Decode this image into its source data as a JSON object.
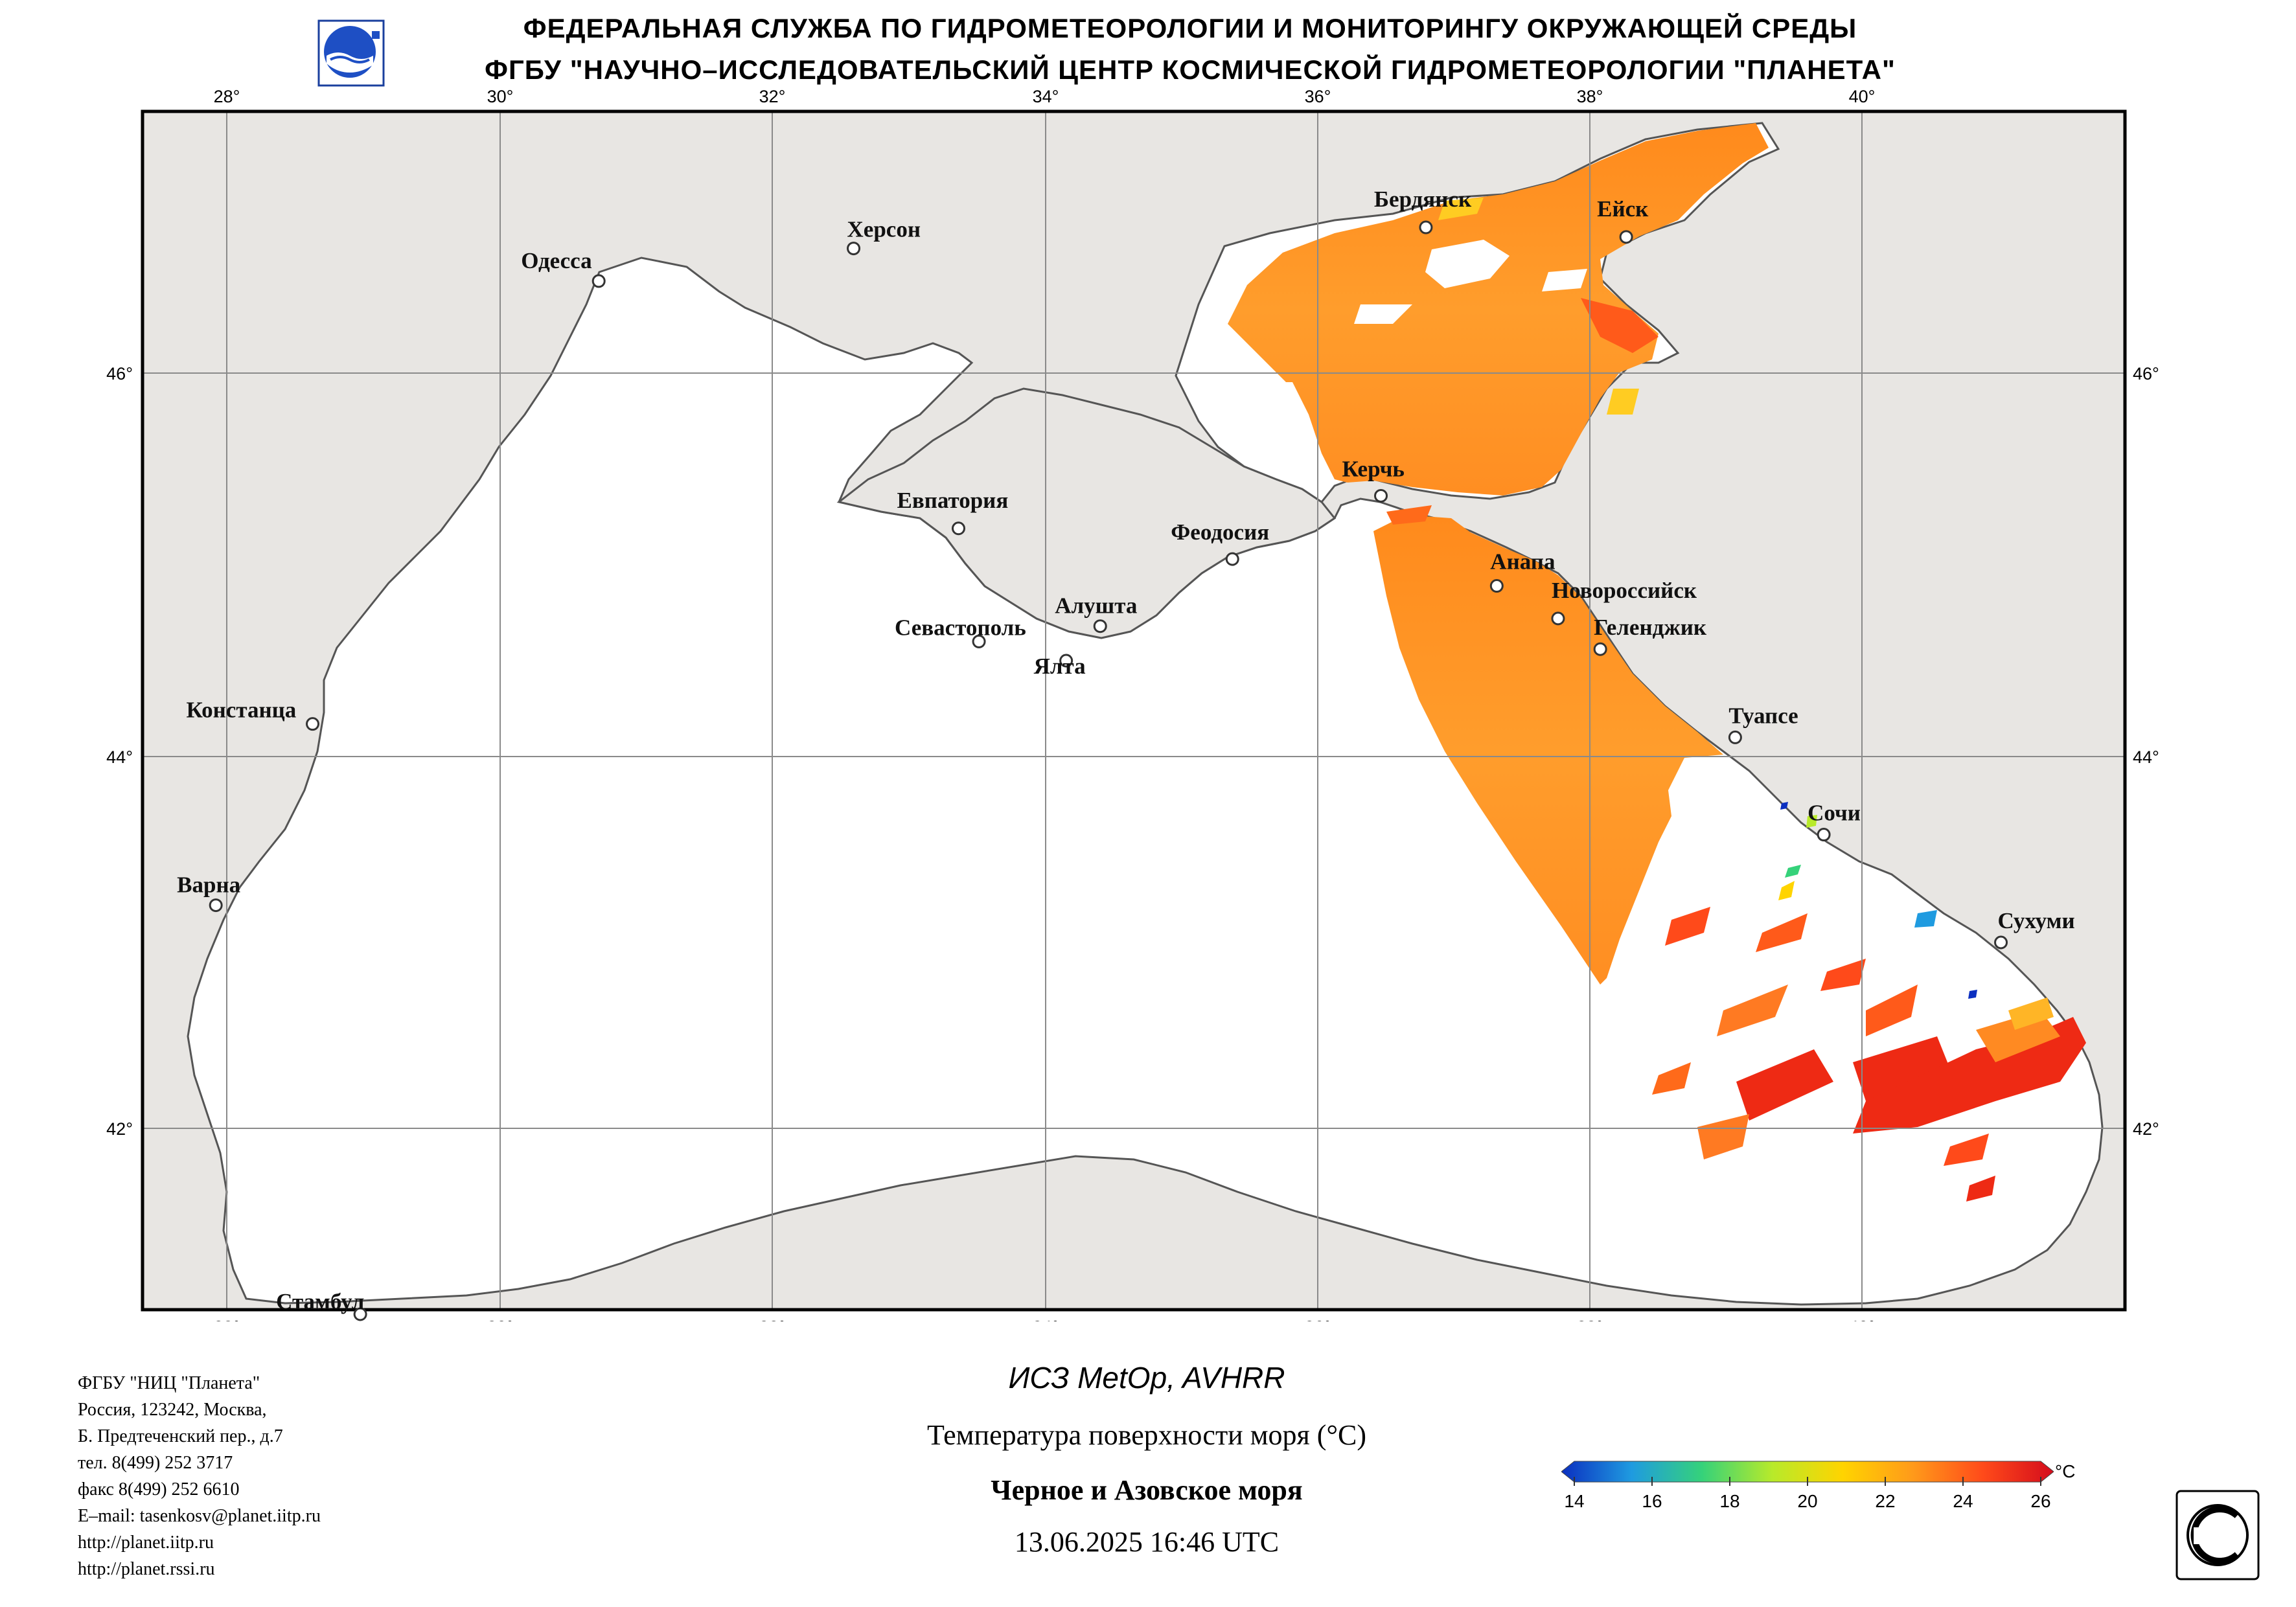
{
  "header": {
    "line1": "ФЕДЕРАЛЬНАЯ СЛУЖБА ПО ГИДРОМЕТЕОРОЛОГИИ И МОНИТОРИНГУ ОКРУЖАЮЩЕЙ СРЕДЫ",
    "line2": "ФГБУ \"НАУЧНО–ИССЛЕДОВАТЕЛЬСКИЙ ЦЕНТР КОСМИЧЕСКОЙ ГИДРОМЕТЕОРОЛОГИИ \"ПЛАНЕТА\""
  },
  "map": {
    "lon_ticks": [
      "28°",
      "30°",
      "32°",
      "34°",
      "36°",
      "38°",
      "40°"
    ],
    "lat_ticks": [
      "46°",
      "44°",
      "42°"
    ],
    "lon_range": [
      27.4,
      41.9
    ],
    "lat_range": [
      41.0,
      47.35
    ],
    "cities": [
      {
        "name": "Одесса",
        "lon": 30.73,
        "lat": 46.48
      },
      {
        "name": "Херсон",
        "lon": 32.6,
        "lat": 46.65
      },
      {
        "name": "Бердянск",
        "lon": 36.8,
        "lat": 46.76
      },
      {
        "name": "Ейск",
        "lon": 38.27,
        "lat": 46.71
      },
      {
        "name": "Керчь",
        "lon": 36.47,
        "lat": 45.36
      },
      {
        "name": "Евпатория",
        "lon": 33.37,
        "lat": 45.19
      },
      {
        "name": "Феодосия",
        "lon": 35.38,
        "lat": 45.03
      },
      {
        "name": "Анапа",
        "lon": 37.32,
        "lat": 44.89
      },
      {
        "name": "Новороссийск",
        "lon": 37.77,
        "lat": 44.72
      },
      {
        "name": "Геленджик",
        "lon": 38.08,
        "lat": 44.56
      },
      {
        "name": "Алушта",
        "lon": 34.41,
        "lat": 44.68
      },
      {
        "name": "Севастополь",
        "lon": 33.52,
        "lat": 44.6
      },
      {
        "name": "Ялта",
        "lon": 34.16,
        "lat": 44.5
      },
      {
        "name": "Констанца",
        "lon": 28.63,
        "lat": 44.17
      },
      {
        "name": "Туапсе",
        "lon": 39.07,
        "lat": 44.1
      },
      {
        "name": "Сочи",
        "lon": 39.72,
        "lat": 43.58
      },
      {
        "name": "Варна",
        "lon": 27.92,
        "lat": 43.2
      },
      {
        "name": "Сухуми",
        "lon": 41.02,
        "lat": 43.0
      },
      {
        "name": "Стамбул",
        "lon": 28.98,
        "lat": 41.0
      }
    ]
  },
  "footer_left": [
    "ФГБУ \"НИЦ \"Планета\"",
    "Россия, 123242, Москва,",
    "Б. Предтеченский пер., д.7",
    "тел. 8(499) 252 3717",
    "факс 8(499) 252 6610",
    "E–mail: tasenkosv@planet.iitp.ru",
    "http://planet.iitp.ru",
    "http://planet.rssi.ru"
  ],
  "satellite": "ИСЗ MetOp, AVHRR",
  "parameter": "Температура поверхности моря (°C)",
  "region": "Черное и Азовское моря",
  "datetime": "13.06.2025 16:46 UTC",
  "colorbar": {
    "unit": "°C",
    "labels": [
      "14",
      "16",
      "18",
      "20",
      "22",
      "24",
      "26"
    ],
    "min": 14,
    "max": 26,
    "colors": [
      "#0b2fc0",
      "#1f9be0",
      "#35d27a",
      "#b8ea2a",
      "#ffd400",
      "#ff9a1a",
      "#ff4a1a",
      "#d40c1c"
    ]
  },
  "colors": {
    "land": "#e8e6e3",
    "sea": "#ffffff",
    "grid": "#8a8a8a",
    "coast": "#555555",
    "sst_main": "#ff9b2a"
  }
}
